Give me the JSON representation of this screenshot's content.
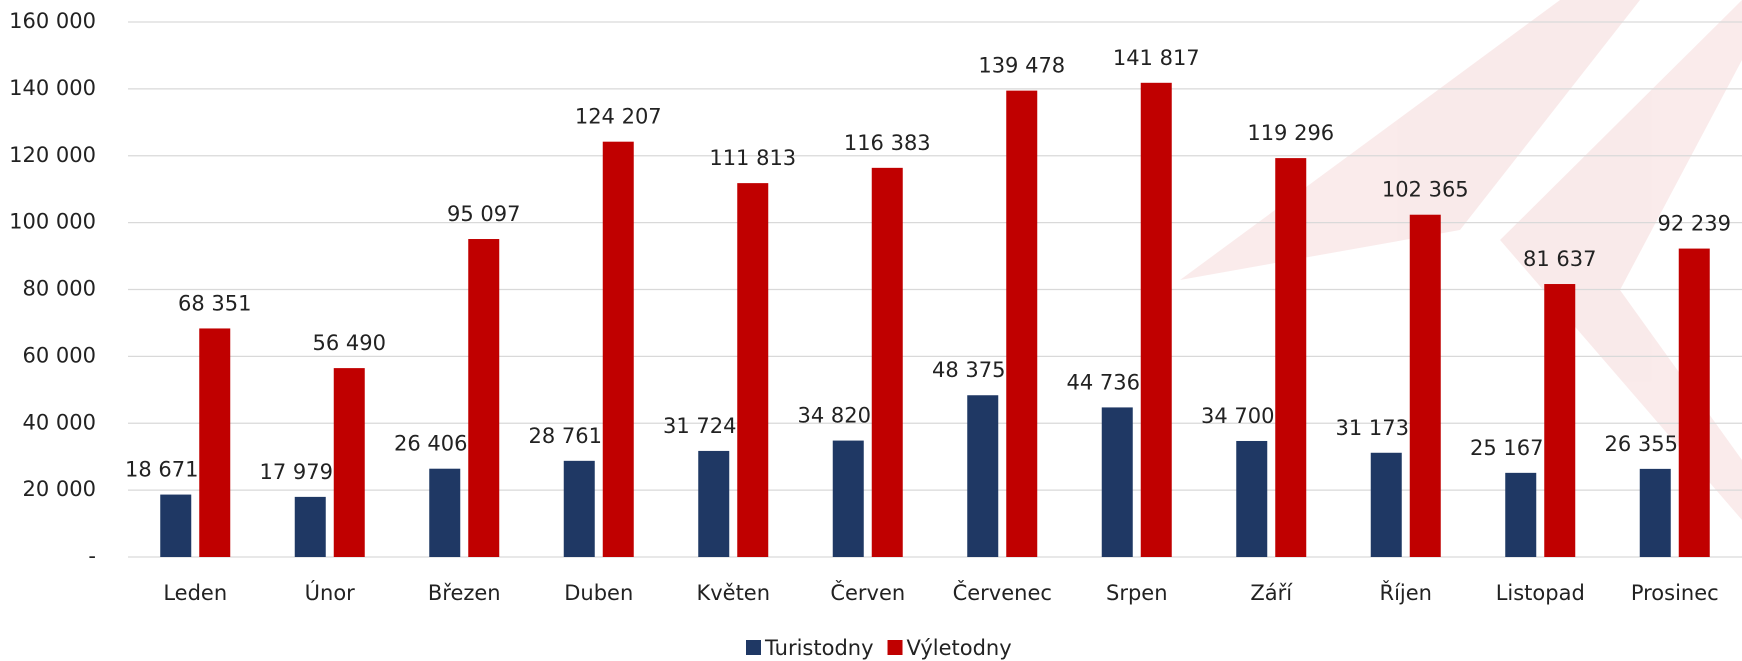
{
  "chart_data": {
    "type": "bar",
    "categories": [
      "Leden",
      "Únor",
      "Březen",
      "Duben",
      "Květen",
      "Červen",
      "Červenec",
      "Srpen",
      "Září",
      "Říjen",
      "Listopad",
      "Prosinec"
    ],
    "series": [
      {
        "name": "Turistodny",
        "color": "#1f3864",
        "values": [
          18671,
          17979,
          26406,
          28761,
          31724,
          34820,
          48375,
          44736,
          34700,
          31173,
          25167,
          26355
        ],
        "value_labels": [
          "18 671",
          "17 979",
          "26 406",
          "28 761",
          "31 724",
          "34 820",
          "48 375",
          "44 736",
          "34 700",
          "31 173",
          "25 167",
          "26 355"
        ]
      },
      {
        "name": "Výletodny",
        "color": "#c00000",
        "values": [
          68351,
          56490,
          95097,
          124207,
          111813,
          116383,
          139478,
          141817,
          119296,
          102365,
          81637,
          92239
        ],
        "value_labels": [
          "68 351",
          "56 490",
          "95 097",
          "124 207",
          "111 813",
          "116 383",
          "139 478",
          "141 817",
          "119 296",
          "102 365",
          "81 637",
          "92 239"
        ]
      }
    ],
    "ylim": [
      0,
      160000
    ],
    "yticks": [
      {
        "value": 0,
        "label": "-"
      },
      {
        "value": 20000,
        "label": "20 000"
      },
      {
        "value": 40000,
        "label": "40 000"
      },
      {
        "value": 60000,
        "label": "60 000"
      },
      {
        "value": 80000,
        "label": "80 000"
      },
      {
        "value": 100000,
        "label": "100 000"
      },
      {
        "value": 120000,
        "label": "120 000"
      },
      {
        "value": 140000,
        "label": "140 000"
      },
      {
        "value": 160000,
        "label": "160 000"
      }
    ],
    "grid": true,
    "legend": "bottom"
  }
}
